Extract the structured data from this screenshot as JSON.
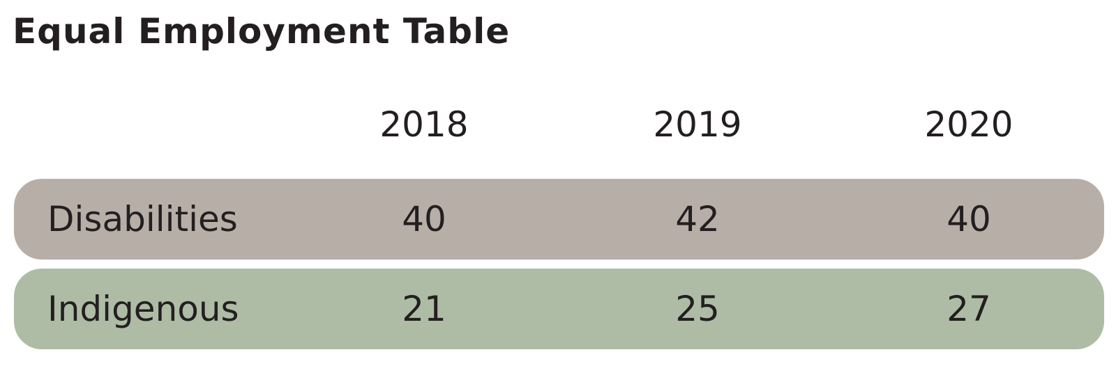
{
  "chart_data": {
    "type": "table",
    "title": "Equal Employment Table",
    "columns": [
      "2018",
      "2019",
      "2020"
    ],
    "rows": [
      {
        "label": "Disabilities",
        "values": [
          40,
          42,
          40
        ],
        "color": "#b8aea8"
      },
      {
        "label": "Indigenous",
        "values": [
          21,
          25,
          27
        ],
        "color": "#aebca6"
      }
    ]
  }
}
